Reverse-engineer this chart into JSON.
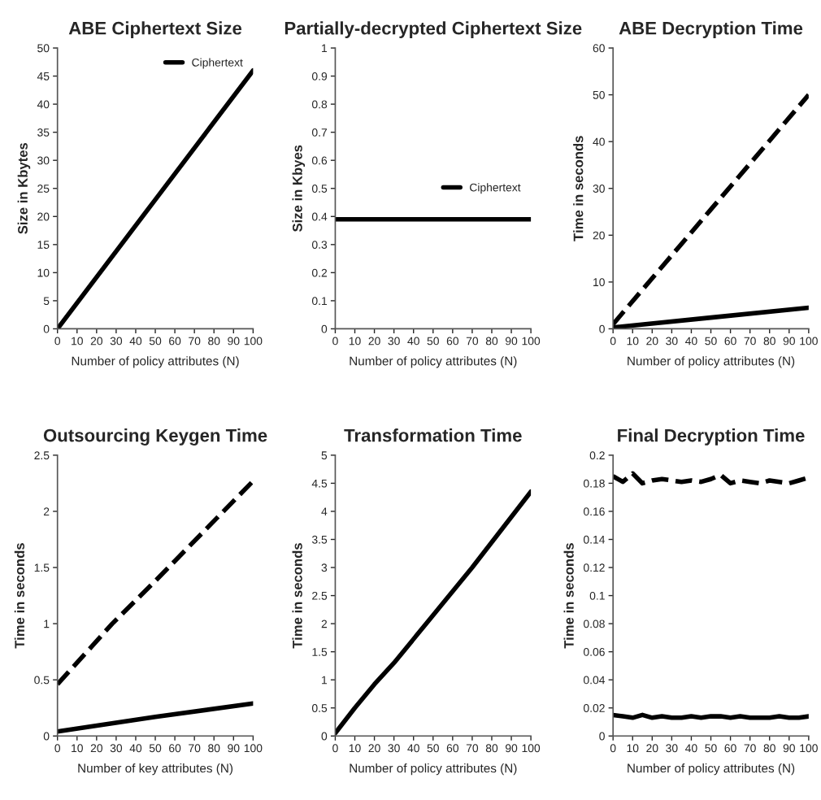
{
  "chart_data": [
    {
      "type": "line",
      "title": "ABE Ciphertext Size",
      "xlabel": "Number of policy attributes (N)",
      "ylabel": "Size in Kbytes",
      "xlim": [
        0,
        100
      ],
      "ylim": [
        0,
        50
      ],
      "xticks": [
        0,
        10,
        20,
        30,
        40,
        50,
        60,
        70,
        80,
        90,
        100
      ],
      "yticks": [
        0,
        5,
        10,
        15,
        20,
        25,
        30,
        35,
        40,
        45,
        50
      ],
      "legend": "top right",
      "series": [
        {
          "name": "Ciphertext",
          "color": "#000000",
          "line_style": "solid",
          "x": [
            0,
            50,
            100
          ],
          "values": [
            0,
            23,
            46
          ]
        }
      ]
    },
    {
      "type": "line",
      "title": "Partially-decrypted Ciphertext Size",
      "xlabel": "Number of policy attributes (N)",
      "ylabel": "Size in Kbyes",
      "xlim": [
        0,
        100
      ],
      "ylim": [
        0,
        1
      ],
      "xticks": [
        0,
        10,
        20,
        30,
        40,
        50,
        60,
        70,
        80,
        90,
        100
      ],
      "yticks": [
        0,
        0.1,
        0.2,
        0.3,
        0.4,
        0.5,
        0.6,
        0.7,
        0.8,
        0.9,
        1
      ],
      "legend": "right",
      "series": [
        {
          "name": "Ciphertext",
          "color": "#000000",
          "line_style": "solid",
          "x": [
            0,
            50,
            100
          ],
          "values": [
            0.39,
            0.39,
            0.39
          ]
        }
      ]
    },
    {
      "type": "line",
      "title": "ABE Decryption Time",
      "xlabel": "Number of policy attributes (N)",
      "ylabel": "Time in seconds",
      "xlim": [
        0,
        100
      ],
      "ylim": [
        0,
        60
      ],
      "xticks": [
        0,
        10,
        20,
        30,
        40,
        50,
        60,
        70,
        80,
        90,
        100
      ],
      "yticks": [
        0,
        10,
        20,
        30,
        40,
        50,
        60
      ],
      "series": [
        {
          "color": "#000000",
          "line_style": "dashed",
          "x": [
            0,
            50,
            100
          ],
          "values": [
            1,
            25.5,
            50
          ]
        },
        {
          "color": "#000000",
          "line_style": "solid",
          "x": [
            0,
            50,
            100
          ],
          "values": [
            0.3,
            2.4,
            4.5
          ]
        }
      ]
    },
    {
      "type": "line",
      "title": "Outsourcing Keygen Time",
      "xlabel": "Number of key attributes (N)",
      "ylabel": "Time in seconds",
      "xlim": [
        0,
        100
      ],
      "ylim": [
        0,
        2.5
      ],
      "xticks": [
        0,
        10,
        20,
        30,
        40,
        50,
        60,
        70,
        80,
        90,
        100
      ],
      "yticks": [
        0,
        0.5,
        1,
        1.5,
        2,
        2.5
      ],
      "series": [
        {
          "color": "#000000",
          "line_style": "dashed",
          "x": [
            0,
            28,
            50,
            100
          ],
          "values": [
            0.46,
            1.0,
            1.38,
            2.27
          ]
        },
        {
          "color": "#000000",
          "line_style": "solid",
          "x": [
            0,
            50,
            100
          ],
          "values": [
            0.04,
            0.17,
            0.29
          ]
        }
      ]
    },
    {
      "type": "line",
      "title": "Transformation Time",
      "xlabel": "Number of policy attributes (N)",
      "ylabel": "Time in seconds",
      "xlim": [
        0,
        100
      ],
      "ylim": [
        0,
        5
      ],
      "xticks": [
        0,
        10,
        20,
        30,
        40,
        50,
        60,
        70,
        80,
        90,
        100
      ],
      "yticks": [
        0,
        0.5,
        1,
        1.5,
        2,
        2.5,
        3,
        3.5,
        4,
        4.5,
        5
      ],
      "series": [
        {
          "color": "#000000",
          "line_style": "solid",
          "x": [
            0,
            10,
            20,
            30,
            50,
            70,
            100
          ],
          "values": [
            0.05,
            0.5,
            0.92,
            1.3,
            2.15,
            3.0,
            4.35
          ]
        }
      ]
    },
    {
      "type": "line",
      "title": "Final Decryption Time",
      "xlabel": "Number of policy attributes (N)",
      "ylabel": "Time in seconds",
      "xlim": [
        0,
        100
      ],
      "ylim": [
        0,
        0.2
      ],
      "xticks": [
        0,
        10,
        20,
        30,
        40,
        50,
        60,
        70,
        80,
        90,
        100
      ],
      "yticks": [
        0,
        0.02,
        0.04,
        0.06,
        0.08,
        0.1,
        0.12,
        0.14,
        0.16,
        0.18,
        0.2
      ],
      "series": [
        {
          "color": "#000000",
          "line_style": "dashed",
          "x": [
            0,
            5,
            10,
            15,
            20,
            25,
            30,
            35,
            40,
            45,
            50,
            55,
            60,
            65,
            70,
            75,
            80,
            85,
            90,
            95,
            100
          ],
          "values": [
            0.185,
            0.181,
            0.187,
            0.18,
            0.182,
            0.183,
            0.182,
            0.181,
            0.182,
            0.181,
            0.183,
            0.186,
            0.18,
            0.182,
            0.181,
            0.18,
            0.182,
            0.181,
            0.18,
            0.182,
            0.184
          ]
        },
        {
          "color": "#000000",
          "line_style": "solid",
          "x": [
            0,
            5,
            10,
            15,
            20,
            25,
            30,
            35,
            40,
            45,
            50,
            55,
            60,
            65,
            70,
            75,
            80,
            85,
            90,
            95,
            100
          ],
          "values": [
            0.015,
            0.014,
            0.013,
            0.015,
            0.013,
            0.014,
            0.013,
            0.013,
            0.014,
            0.013,
            0.014,
            0.014,
            0.013,
            0.014,
            0.013,
            0.013,
            0.013,
            0.014,
            0.013,
            0.013,
            0.014
          ]
        }
      ]
    }
  ]
}
